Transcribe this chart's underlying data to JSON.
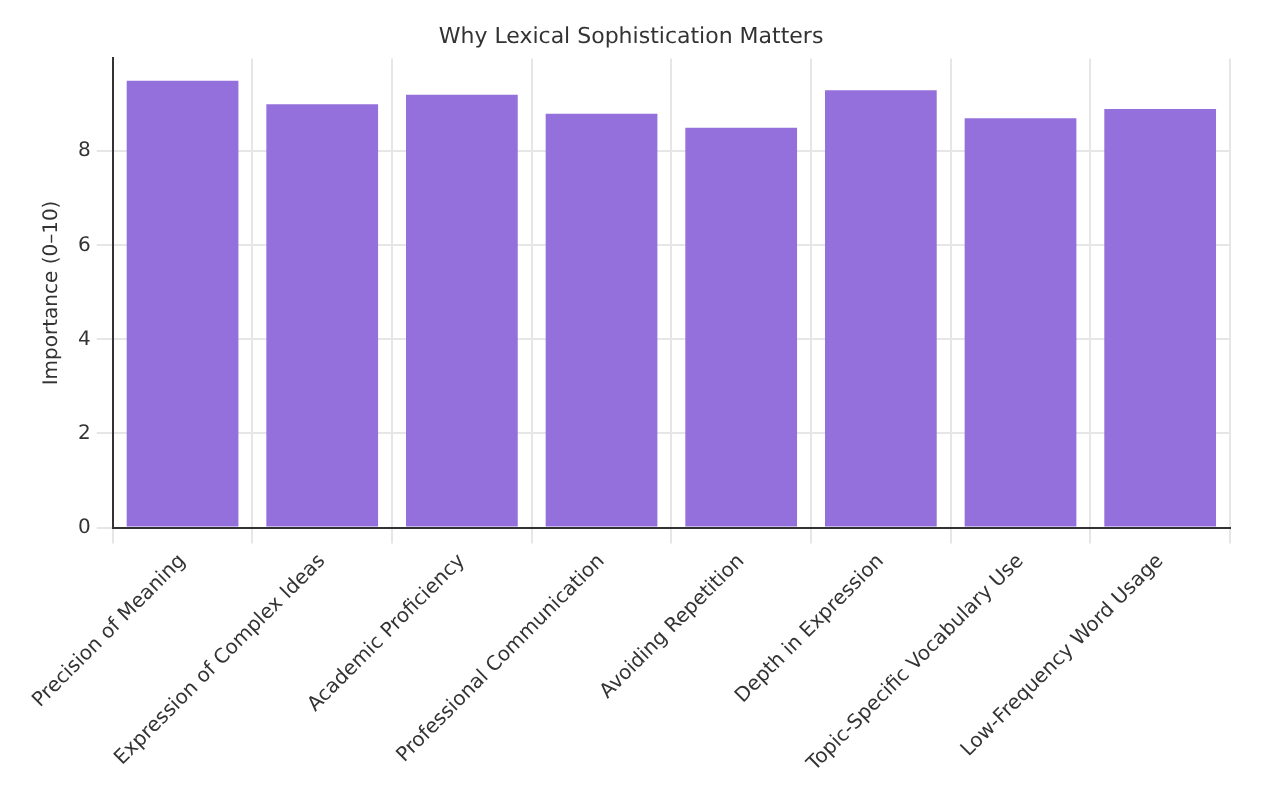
{
  "chart_data": {
    "type": "bar",
    "title": "Why Lexical Sophistication Matters",
    "ylabel": "Importance (0–10)",
    "categories": [
      "Precision of Meaning",
      "Expression of Complex Ideas",
      "Academic Proficiency",
      "Professional Communication",
      "Avoiding Repetition",
      "Depth in Expression",
      "Topic-Specific Vocabulary Use",
      "Low-Frequency Word Usage"
    ],
    "values": [
      9.5,
      9.0,
      9.2,
      8.8,
      8.5,
      9.3,
      8.7,
      8.9
    ],
    "color": "#9370db",
    "ylim": [
      0,
      9.975
    ],
    "yticks": [
      0,
      2,
      4,
      6,
      8
    ],
    "grid": true
  }
}
